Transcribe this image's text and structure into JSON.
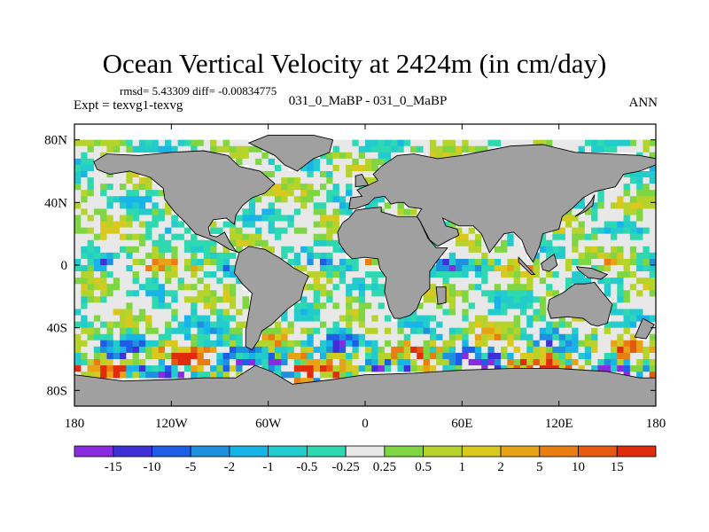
{
  "chart_data": {
    "type": "heatmap",
    "title": "Ocean Vertical Velocity at 2424m (in cm/day)",
    "stats": "rmsd= 5.43309 diff= -0.00834775",
    "left_label": "Expt = texvg1-texvg",
    "center_label": "031_0_MaBP - 031_0_MaBP",
    "right_label": "ANN",
    "x_ticks": [
      "180",
      "120W",
      "60W",
      "0",
      "60E",
      "120E",
      "180"
    ],
    "x_tick_values": [
      -180,
      -120,
      -60,
      0,
      60,
      120,
      180
    ],
    "y_ticks": [
      "80N",
      "40N",
      "0",
      "40S",
      "80S"
    ],
    "y_tick_values": [
      80,
      40,
      0,
      -40,
      -80
    ],
    "xlim": [
      -180,
      180
    ],
    "ylim": [
      -90,
      90
    ],
    "colorbar_labels": [
      "-15",
      "-10",
      "-5",
      "-2",
      "-1",
      "-0.5",
      "-0.25",
      "0.25",
      "0.5",
      "1",
      "2",
      "5",
      "10",
      "15"
    ],
    "colorbar_colors": [
      "#8a2be2",
      "#3f2fd6",
      "#1e5de6",
      "#1f8fe0",
      "#18b4e8",
      "#22cccc",
      "#2ed8b0",
      "#e8e8e8",
      "#7fd642",
      "#b6d32c",
      "#d9c81e",
      "#e8a216",
      "#ea7d12",
      "#e55a10",
      "#e02c0c"
    ],
    "land_color": "#a0a0a0",
    "missing_color": "#ffffff"
  }
}
